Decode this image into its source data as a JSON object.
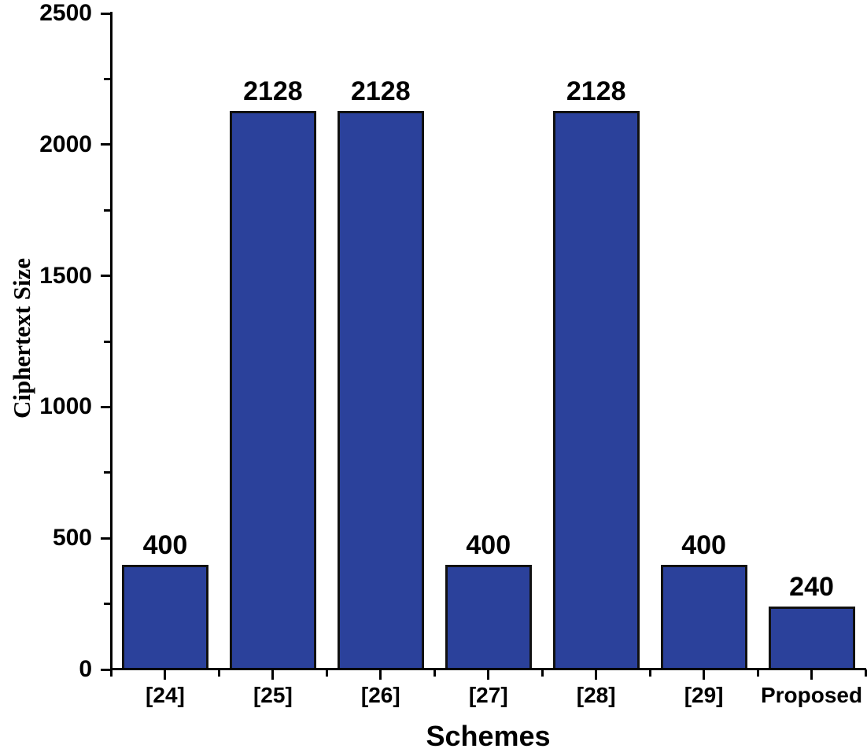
{
  "figure": {
    "background": "#ffffff",
    "bar_fill": "#2B419B",
    "bar_border": "#111111",
    "axis_color": "#000000",
    "text_color": "#000000"
  },
  "chart_data": {
    "type": "bar",
    "title": "",
    "categories": [
      "[24]",
      "[25]",
      "[26]",
      "[27]",
      "[28]",
      "[29]",
      "Proposed"
    ],
    "values": [
      400,
      2128,
      2128,
      400,
      2128,
      400,
      240
    ],
    "bar_labels": [
      "400",
      "2128",
      "2128",
      "400",
      "2128",
      "400",
      "240"
    ],
    "xlabel": "Schemes",
    "ylabel": "Ciphertext Size",
    "ylim": [
      0,
      2500
    ],
    "y_major_ticks": [
      0,
      500,
      1000,
      1500,
      2000,
      2500
    ],
    "y_major_tick_labels": [
      "0",
      "500",
      "1000",
      "1500",
      "2000",
      "2500"
    ],
    "y_minor_step": 250,
    "grid": false,
    "legend": "none",
    "bar_width_fraction": 0.8
  }
}
